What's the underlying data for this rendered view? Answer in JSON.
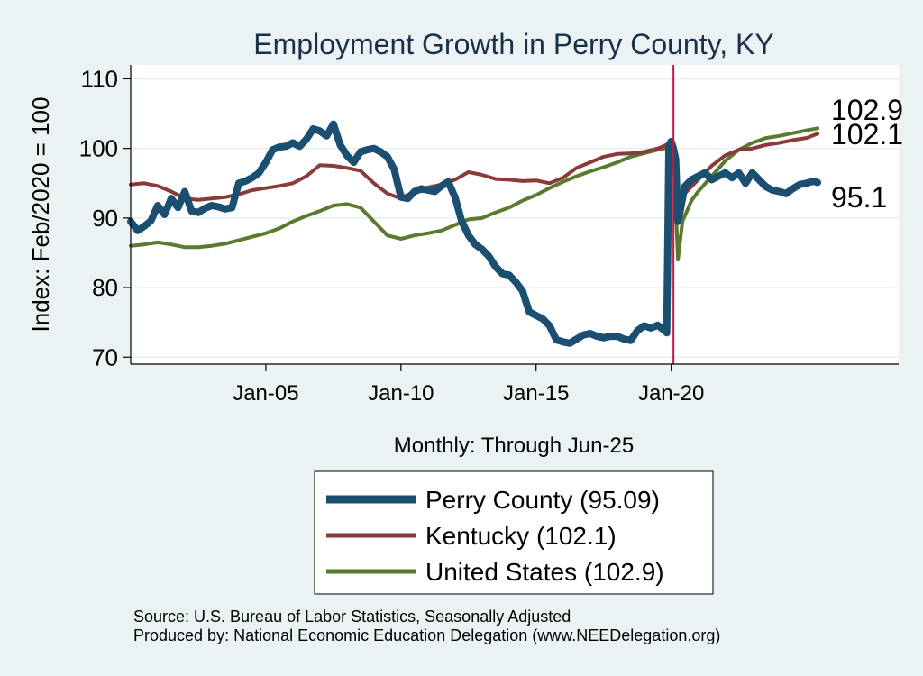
{
  "chart_data": {
    "type": "line",
    "title": "Employment Growth in Perry  County, KY",
    "xlabel": "Monthly: Through Jun-25",
    "ylabel": "Index: Feb/2020 = 100",
    "ylim": [
      69,
      112
    ],
    "xlim": [
      "2000-01",
      "2028-06"
    ],
    "yticks": [
      70,
      80,
      90,
      100,
      110
    ],
    "xticks": [
      {
        "date": "2005-01",
        "label": "Jan-05"
      },
      {
        "date": "2010-01",
        "label": "Jan-10"
      },
      {
        "date": "2015-01",
        "label": "Jan-15"
      },
      {
        "date": "2020-01",
        "label": "Jan-20"
      }
    ],
    "grid": true,
    "vline": {
      "date": "2020-02",
      "color": "#c0193c"
    },
    "legend_position": "bottom",
    "series": [
      {
        "name": "Perry  County (95.09)",
        "color": "#1b4f72",
        "end_label": "95.1",
        "points": [
          [
            "2000-01",
            89.5
          ],
          [
            "2000-04",
            88.2
          ],
          [
            "2000-07",
            88.8
          ],
          [
            "2000-10",
            89.6
          ],
          [
            "2001-01",
            91.8
          ],
          [
            "2001-04",
            90.5
          ],
          [
            "2001-07",
            92.8
          ],
          [
            "2001-10",
            91.5
          ],
          [
            "2002-01",
            93.8
          ],
          [
            "2002-04",
            91.0
          ],
          [
            "2002-07",
            90.8
          ],
          [
            "2002-10",
            91.4
          ],
          [
            "2003-01",
            91.8
          ],
          [
            "2003-04",
            91.6
          ],
          [
            "2003-07",
            91.3
          ],
          [
            "2003-10",
            91.5
          ],
          [
            "2004-01",
            95.0
          ],
          [
            "2004-04",
            95.3
          ],
          [
            "2004-07",
            95.8
          ],
          [
            "2004-10",
            96.5
          ],
          [
            "2005-01",
            98.0
          ],
          [
            "2005-04",
            99.8
          ],
          [
            "2005-07",
            100.2
          ],
          [
            "2005-10",
            100.3
          ],
          [
            "2006-01",
            100.8
          ],
          [
            "2006-04",
            100.3
          ],
          [
            "2006-07",
            101.3
          ],
          [
            "2006-10",
            102.8
          ],
          [
            "2007-01",
            102.5
          ],
          [
            "2007-04",
            101.8
          ],
          [
            "2007-07",
            103.5
          ],
          [
            "2007-10",
            100.5
          ],
          [
            "2008-01",
            99.0
          ],
          [
            "2008-04",
            98.0
          ],
          [
            "2008-07",
            99.5
          ],
          [
            "2008-10",
            99.8
          ],
          [
            "2009-01",
            100.0
          ],
          [
            "2009-04",
            99.5
          ],
          [
            "2009-07",
            98.8
          ],
          [
            "2009-10",
            97.0
          ],
          [
            "2010-01",
            93.0
          ],
          [
            "2010-04",
            92.8
          ],
          [
            "2010-07",
            93.8
          ],
          [
            "2010-10",
            94.2
          ],
          [
            "2011-01",
            94.0
          ],
          [
            "2011-04",
            93.8
          ],
          [
            "2011-07",
            94.6
          ],
          [
            "2011-10",
            95.2
          ],
          [
            "2012-01",
            93.0
          ],
          [
            "2012-04",
            89.5
          ],
          [
            "2012-07",
            87.5
          ],
          [
            "2012-10",
            86.2
          ],
          [
            "2013-01",
            85.5
          ],
          [
            "2013-04",
            84.5
          ],
          [
            "2013-07",
            83.0
          ],
          [
            "2013-10",
            82.0
          ],
          [
            "2014-01",
            81.8
          ],
          [
            "2014-04",
            80.8
          ],
          [
            "2014-07",
            79.5
          ],
          [
            "2014-10",
            76.5
          ],
          [
            "2015-01",
            76.0
          ],
          [
            "2015-04",
            75.5
          ],
          [
            "2015-07",
            74.5
          ],
          [
            "2015-10",
            72.5
          ],
          [
            "2016-01",
            72.2
          ],
          [
            "2016-04",
            72.0
          ],
          [
            "2016-07",
            72.6
          ],
          [
            "2016-10",
            73.2
          ],
          [
            "2017-01",
            73.4
          ],
          [
            "2017-04",
            73.0
          ],
          [
            "2017-07",
            72.8
          ],
          [
            "2017-10",
            73.0
          ],
          [
            "2018-01",
            73.0
          ],
          [
            "2018-04",
            72.6
          ],
          [
            "2018-07",
            72.4
          ],
          [
            "2018-10",
            73.8
          ],
          [
            "2019-01",
            74.5
          ],
          [
            "2019-04",
            74.2
          ],
          [
            "2019-07",
            74.6
          ],
          [
            "2019-10",
            73.8
          ],
          [
            "2019-11",
            73.5
          ],
          [
            "2019-12",
            100.5
          ],
          [
            "2020-01",
            101.0
          ],
          [
            "2020-02",
            100.0
          ],
          [
            "2020-03",
            98.5
          ],
          [
            "2020-04",
            89.5
          ],
          [
            "2020-05",
            91.0
          ],
          [
            "2020-07",
            94.5
          ],
          [
            "2020-10",
            95.5
          ],
          [
            "2021-01",
            96.0
          ],
          [
            "2021-04",
            96.5
          ],
          [
            "2021-07",
            95.5
          ],
          [
            "2021-10",
            96.0
          ],
          [
            "2022-01",
            96.5
          ],
          [
            "2022-04",
            95.8
          ],
          [
            "2022-07",
            96.5
          ],
          [
            "2022-10",
            95.0
          ],
          [
            "2023-01",
            96.5
          ],
          [
            "2023-04",
            95.5
          ],
          [
            "2023-07",
            94.5
          ],
          [
            "2023-10",
            94.0
          ],
          [
            "2024-01",
            93.8
          ],
          [
            "2024-04",
            93.5
          ],
          [
            "2024-07",
            94.2
          ],
          [
            "2024-10",
            94.8
          ],
          [
            "2025-01",
            95.0
          ],
          [
            "2025-04",
            95.3
          ],
          [
            "2025-06",
            95.1
          ]
        ]
      },
      {
        "name": "Kentucky (102.1)",
        "color": "#8b3a3a",
        "end_label": "102.1",
        "points": [
          [
            "2000-01",
            94.8
          ],
          [
            "2000-07",
            95.0
          ],
          [
            "2001-01",
            94.6
          ],
          [
            "2001-07",
            93.8
          ],
          [
            "2002-01",
            92.8
          ],
          [
            "2002-07",
            92.6
          ],
          [
            "2003-01",
            92.8
          ],
          [
            "2003-07",
            93.0
          ],
          [
            "2004-01",
            93.4
          ],
          [
            "2004-07",
            94.0
          ],
          [
            "2005-01",
            94.3
          ],
          [
            "2005-07",
            94.6
          ],
          [
            "2006-01",
            95.0
          ],
          [
            "2006-07",
            96.0
          ],
          [
            "2007-01",
            97.6
          ],
          [
            "2007-07",
            97.5
          ],
          [
            "2008-01",
            97.2
          ],
          [
            "2008-07",
            96.8
          ],
          [
            "2009-01",
            95.0
          ],
          [
            "2009-07",
            93.5
          ],
          [
            "2010-01",
            92.8
          ],
          [
            "2010-07",
            93.8
          ],
          [
            "2011-01",
            94.4
          ],
          [
            "2011-07",
            94.8
          ],
          [
            "2012-01",
            95.5
          ],
          [
            "2012-07",
            96.6
          ],
          [
            "2013-01",
            96.2
          ],
          [
            "2013-07",
            95.6
          ],
          [
            "2014-01",
            95.5
          ],
          [
            "2014-07",
            95.3
          ],
          [
            "2015-01",
            95.4
          ],
          [
            "2015-07",
            95.0
          ],
          [
            "2016-01",
            95.8
          ],
          [
            "2016-07",
            97.2
          ],
          [
            "2017-01",
            98.0
          ],
          [
            "2017-07",
            98.8
          ],
          [
            "2018-01",
            99.2
          ],
          [
            "2018-07",
            99.3
          ],
          [
            "2019-01",
            99.5
          ],
          [
            "2019-07",
            100.0
          ],
          [
            "2020-01",
            100.8
          ],
          [
            "2020-02",
            100.0
          ],
          [
            "2020-04",
            89.5
          ],
          [
            "2020-07",
            93.5
          ],
          [
            "2021-01",
            95.5
          ],
          [
            "2021-07",
            97.5
          ],
          [
            "2022-01",
            99.0
          ],
          [
            "2022-07",
            99.8
          ],
          [
            "2023-01",
            100.0
          ],
          [
            "2023-07",
            100.5
          ],
          [
            "2024-01",
            100.8
          ],
          [
            "2024-07",
            101.2
          ],
          [
            "2025-01",
            101.5
          ],
          [
            "2025-06",
            102.1
          ]
        ]
      },
      {
        "name": "United States (102.9)",
        "color": "#5a7a2e",
        "end_label": "102.9",
        "points": [
          [
            "2000-01",
            86.0
          ],
          [
            "2000-07",
            86.2
          ],
          [
            "2001-01",
            86.5
          ],
          [
            "2001-07",
            86.2
          ],
          [
            "2002-01",
            85.8
          ],
          [
            "2002-07",
            85.8
          ],
          [
            "2003-01",
            86.0
          ],
          [
            "2003-07",
            86.3
          ],
          [
            "2004-01",
            86.8
          ],
          [
            "2004-07",
            87.3
          ],
          [
            "2005-01",
            87.8
          ],
          [
            "2005-07",
            88.5
          ],
          [
            "2006-01",
            89.5
          ],
          [
            "2006-07",
            90.3
          ],
          [
            "2007-01",
            91.0
          ],
          [
            "2007-07",
            91.8
          ],
          [
            "2008-01",
            92.0
          ],
          [
            "2008-07",
            91.5
          ],
          [
            "2009-01",
            89.5
          ],
          [
            "2009-07",
            87.5
          ],
          [
            "2010-01",
            87.0
          ],
          [
            "2010-07",
            87.5
          ],
          [
            "2011-01",
            87.8
          ],
          [
            "2011-07",
            88.2
          ],
          [
            "2012-01",
            89.0
          ],
          [
            "2012-07",
            89.8
          ],
          [
            "2013-01",
            90.0
          ],
          [
            "2013-07",
            90.8
          ],
          [
            "2014-01",
            91.5
          ],
          [
            "2014-07",
            92.5
          ],
          [
            "2015-01",
            93.3
          ],
          [
            "2015-07",
            94.3
          ],
          [
            "2016-01",
            95.2
          ],
          [
            "2016-07",
            96.0
          ],
          [
            "2017-01",
            96.7
          ],
          [
            "2017-07",
            97.3
          ],
          [
            "2018-01",
            98.0
          ],
          [
            "2018-07",
            98.8
          ],
          [
            "2019-01",
            99.3
          ],
          [
            "2019-07",
            99.8
          ],
          [
            "2020-01",
            100.2
          ],
          [
            "2020-02",
            100.0
          ],
          [
            "2020-04",
            84.0
          ],
          [
            "2020-06",
            89.5
          ],
          [
            "2020-10",
            92.5
          ],
          [
            "2021-01",
            93.8
          ],
          [
            "2021-07",
            96.0
          ],
          [
            "2022-01",
            98.2
          ],
          [
            "2022-07",
            99.8
          ],
          [
            "2023-01",
            100.8
          ],
          [
            "2023-07",
            101.5
          ],
          [
            "2024-01",
            101.8
          ],
          [
            "2024-07",
            102.2
          ],
          [
            "2025-01",
            102.6
          ],
          [
            "2025-06",
            102.9
          ]
        ]
      }
    ]
  },
  "source_line1": "Source: U.S. Bureau of Labor Statistics, Seasonally Adjusted",
  "source_line2": "Produced by: National Economic Education Delegation (www.NEEDelegation.org)"
}
